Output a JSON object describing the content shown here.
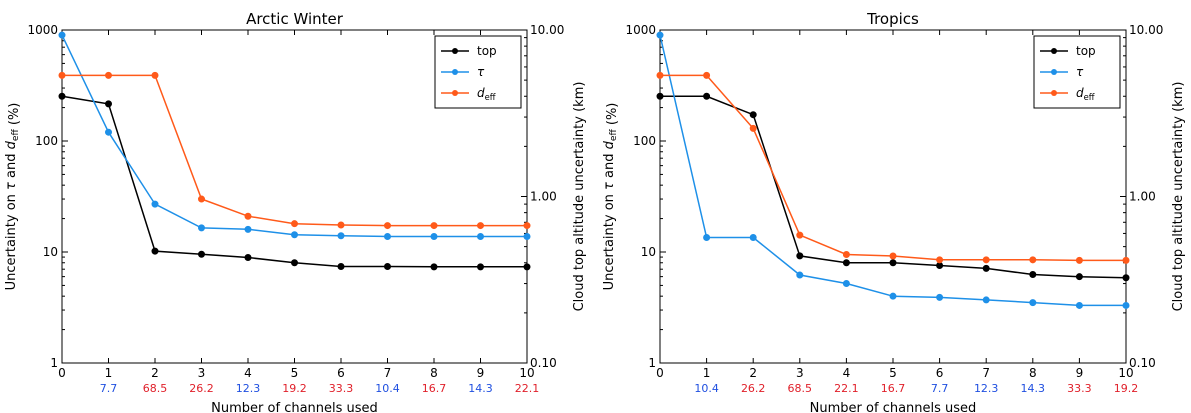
{
  "chart_data": [
    {
      "type": "line",
      "title": "Arctic Winter",
      "xlabel": "Number of channels used",
      "ylabel": "Uncertainty on τ and d_eff (%)",
      "ylabel_right": "Cloud top altitude uncertainty (km)",
      "y_scale": "log",
      "ylim": [
        1,
        1000
      ],
      "y2_scale": "log",
      "y2lim": [
        0.1,
        10
      ],
      "xlim": [
        0,
        10
      ],
      "x": [
        0,
        1,
        2,
        3,
        4,
        5,
        6,
        7,
        8,
        9,
        10
      ],
      "x_tick_labels": [
        "0",
        "1",
        "2",
        "3",
        "4",
        "5",
        "6",
        "7",
        "8",
        "9",
        "10"
      ],
      "y_tick_labels": [
        "1",
        "10",
        "100",
        "1000"
      ],
      "y2_tick_labels": [
        "0.10",
        "1.00",
        "10.00"
      ],
      "legend_position": "top-right",
      "channel_labels": [
        {
          "x": 1,
          "label": "7.7",
          "color": "#1f4fe0"
        },
        {
          "x": 2,
          "label": "68.5",
          "color": "#e0202a"
        },
        {
          "x": 3,
          "label": "26.2",
          "color": "#e0202a"
        },
        {
          "x": 4,
          "label": "12.3",
          "color": "#1f4fe0"
        },
        {
          "x": 5,
          "label": "19.2",
          "color": "#e0202a"
        },
        {
          "x": 6,
          "label": "33.3",
          "color": "#e0202a"
        },
        {
          "x": 7,
          "label": "10.4",
          "color": "#1f4fe0"
        },
        {
          "x": 8,
          "label": "16.7",
          "color": "#e0202a"
        },
        {
          "x": 9,
          "label": "14.3",
          "color": "#1f4fe0"
        },
        {
          "x": 10,
          "label": "22.1",
          "color": "#e0202a"
        }
      ],
      "series": [
        {
          "name": "top",
          "axis": "right",
          "color": "#000000",
          "values": [
            4.0,
            3.6,
            0.47,
            0.45,
            0.43,
            0.4,
            0.38,
            0.38,
            0.378,
            0.378,
            0.378
          ]
        },
        {
          "name": "τ",
          "axis": "left",
          "color": "#1e90e8",
          "values": [
            900,
            120,
            27,
            16.5,
            16,
            14.3,
            14,
            13.8,
            13.8,
            13.8,
            13.8
          ]
        },
        {
          "name": "d_eff",
          "axis": "left",
          "color": "#ff5a1a",
          "values": [
            390,
            390,
            390,
            30,
            21,
            18,
            17.5,
            17.3,
            17.3,
            17.3,
            17.3
          ]
        }
      ]
    },
    {
      "type": "line",
      "title": "Tropics",
      "xlabel": "Number of channels used",
      "ylabel": "Uncertainty on τ and d_eff (%)",
      "ylabel_right": "Cloud top altitude uncertainty (km)",
      "y_scale": "log",
      "ylim": [
        1,
        1000
      ],
      "y2_scale": "log",
      "y2lim": [
        0.1,
        10
      ],
      "xlim": [
        0,
        10
      ],
      "x": [
        0,
        1,
        2,
        3,
        4,
        5,
        6,
        7,
        8,
        9,
        10
      ],
      "x_tick_labels": [
        "0",
        "1",
        "2",
        "3",
        "4",
        "5",
        "6",
        "7",
        "8",
        "9",
        "10"
      ],
      "y_tick_labels": [
        "1",
        "10",
        "100",
        "1000"
      ],
      "y2_tick_labels": [
        "0.10",
        "1.00",
        "10.00"
      ],
      "legend_position": "top-right",
      "channel_labels": [
        {
          "x": 1,
          "label": "10.4",
          "color": "#1f4fe0"
        },
        {
          "x": 2,
          "label": "26.2",
          "color": "#e0202a"
        },
        {
          "x": 3,
          "label": "68.5",
          "color": "#e0202a"
        },
        {
          "x": 4,
          "label": "22.1",
          "color": "#e0202a"
        },
        {
          "x": 5,
          "label": "16.7",
          "color": "#e0202a"
        },
        {
          "x": 6,
          "label": "7.7",
          "color": "#1f4fe0"
        },
        {
          "x": 7,
          "label": "12.3",
          "color": "#1f4fe0"
        },
        {
          "x": 8,
          "label": "14.3",
          "color": "#1f4fe0"
        },
        {
          "x": 9,
          "label": "33.3",
          "color": "#e0202a"
        },
        {
          "x": 10,
          "label": "19.2",
          "color": "#e0202a"
        }
      ],
      "series": [
        {
          "name": "top",
          "axis": "right",
          "color": "#000000",
          "values": [
            4.0,
            4.0,
            3.1,
            0.44,
            0.4,
            0.4,
            0.385,
            0.37,
            0.34,
            0.33,
            0.325
          ]
        },
        {
          "name": "τ",
          "axis": "left",
          "color": "#1e90e8",
          "values": [
            900,
            13.5,
            13.5,
            6.2,
            5.2,
            4.0,
            3.9,
            3.7,
            3.5,
            3.3,
            3.3
          ]
        },
        {
          "name": "d_eff",
          "axis": "left",
          "color": "#ff5a1a",
          "values": [
            390,
            390,
            130,
            14.2,
            9.5,
            9.2,
            8.5,
            8.5,
            8.5,
            8.4,
            8.4
          ]
        }
      ]
    }
  ]
}
